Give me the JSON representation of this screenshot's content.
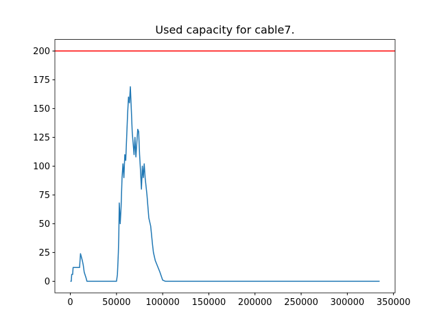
{
  "chart_data": {
    "type": "line",
    "title": "Used capacity for cable7.",
    "x": [
      0,
      1000,
      1500,
      2500,
      3000,
      10000,
      10500,
      11000,
      13000,
      14000,
      15000,
      17000,
      18000,
      50000,
      51000,
      51500,
      52000,
      52500,
      53000,
      54000,
      55000,
      56000,
      57000,
      58000,
      59000,
      60000,
      61000,
      62000,
      63000,
      64000,
      65000,
      66000,
      67000,
      68000,
      69000,
      70000,
      71000,
      72000,
      73000,
      74000,
      75000,
      76000,
      77000,
      78000,
      79000,
      80000,
      81000,
      83000,
      84000,
      85000,
      87000,
      88000,
      89000,
      90000,
      92000,
      95000,
      97000,
      100000,
      103000,
      110000,
      335000
    ],
    "series": [
      {
        "color": "#1f77b4",
        "values": [
          0,
          0,
          6,
          6,
          12,
          12,
          18,
          24,
          18,
          14,
          8,
          3,
          0,
          0,
          6,
          15,
          25,
          40,
          68,
          50,
          65,
          90,
          102,
          90,
          110,
          105,
          125,
          145,
          160,
          155,
          169,
          150,
          130,
          120,
          110,
          125,
          108,
          120,
          132,
          130,
          110,
          96,
          80,
          100,
          90,
          102,
          90,
          75,
          65,
          55,
          48,
          40,
          32,
          25,
          18,
          12,
          8,
          1,
          0,
          0,
          0
        ]
      }
    ],
    "hline": {
      "value": 200,
      "color": "#ff0000"
    },
    "xlim": [
      -16750,
      351750
    ],
    "ylim": [
      -10,
      210
    ],
    "xticks": [
      0,
      50000,
      100000,
      150000,
      200000,
      250000,
      300000,
      350000
    ],
    "yticks": [
      0,
      25,
      50,
      75,
      100,
      125,
      150,
      175,
      200
    ]
  }
}
